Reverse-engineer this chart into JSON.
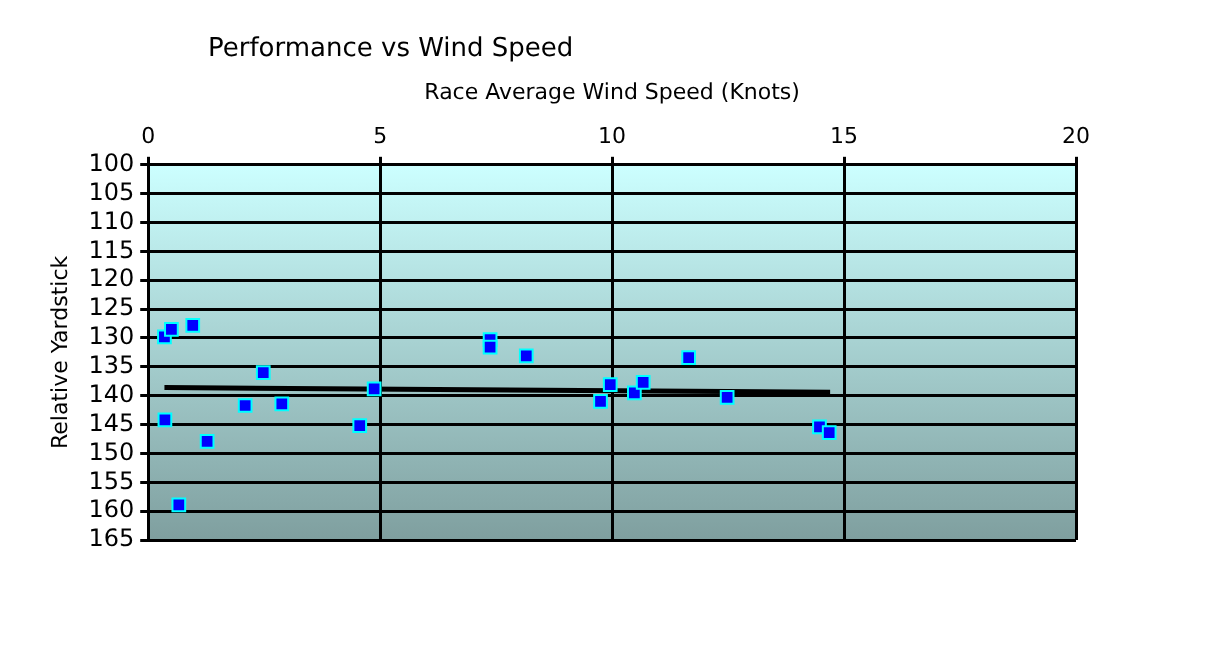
{
  "chart_data": {
    "type": "scatter",
    "title": "Performance vs Wind Speed",
    "xlabel": "Race Average Wind Speed (Knots)",
    "ylabel": "Relative Yardstick",
    "xlim": [
      0,
      20
    ],
    "xticks": [
      0,
      5,
      10,
      15,
      20
    ],
    "ylim": [
      165,
      100
    ],
    "yticks": [
      100,
      105,
      110,
      115,
      120,
      125,
      130,
      135,
      140,
      145,
      150,
      155,
      160,
      165
    ],
    "grid": true,
    "legend": false,
    "series": [
      {
        "marker": "square",
        "color": "#0000ff",
        "x": [
          0.35,
          0.5,
          0.96,
          0.36,
          0.66,
          1.27,
          2.48,
          2.09,
          2.88,
          4.56,
          4.87,
          7.37,
          7.37,
          8.15,
          9.96,
          9.75,
          10.48,
          10.67,
          11.65,
          12.48,
          14.47,
          14.68
        ],
        "values": [
          129.8,
          128.5,
          127.8,
          144.2,
          158.9,
          147.9,
          136.0,
          141.7,
          141.4,
          145.2,
          138.8,
          130.3,
          131.6,
          133.1,
          138.1,
          141.0,
          139.5,
          137.7,
          133.4,
          140.3,
          145.4,
          146.4
        ]
      },
      {
        "type": "line",
        "color": "#000000",
        "x": [
          0.35,
          14.7
        ],
        "values": [
          138.6,
          139.4
        ]
      }
    ]
  }
}
